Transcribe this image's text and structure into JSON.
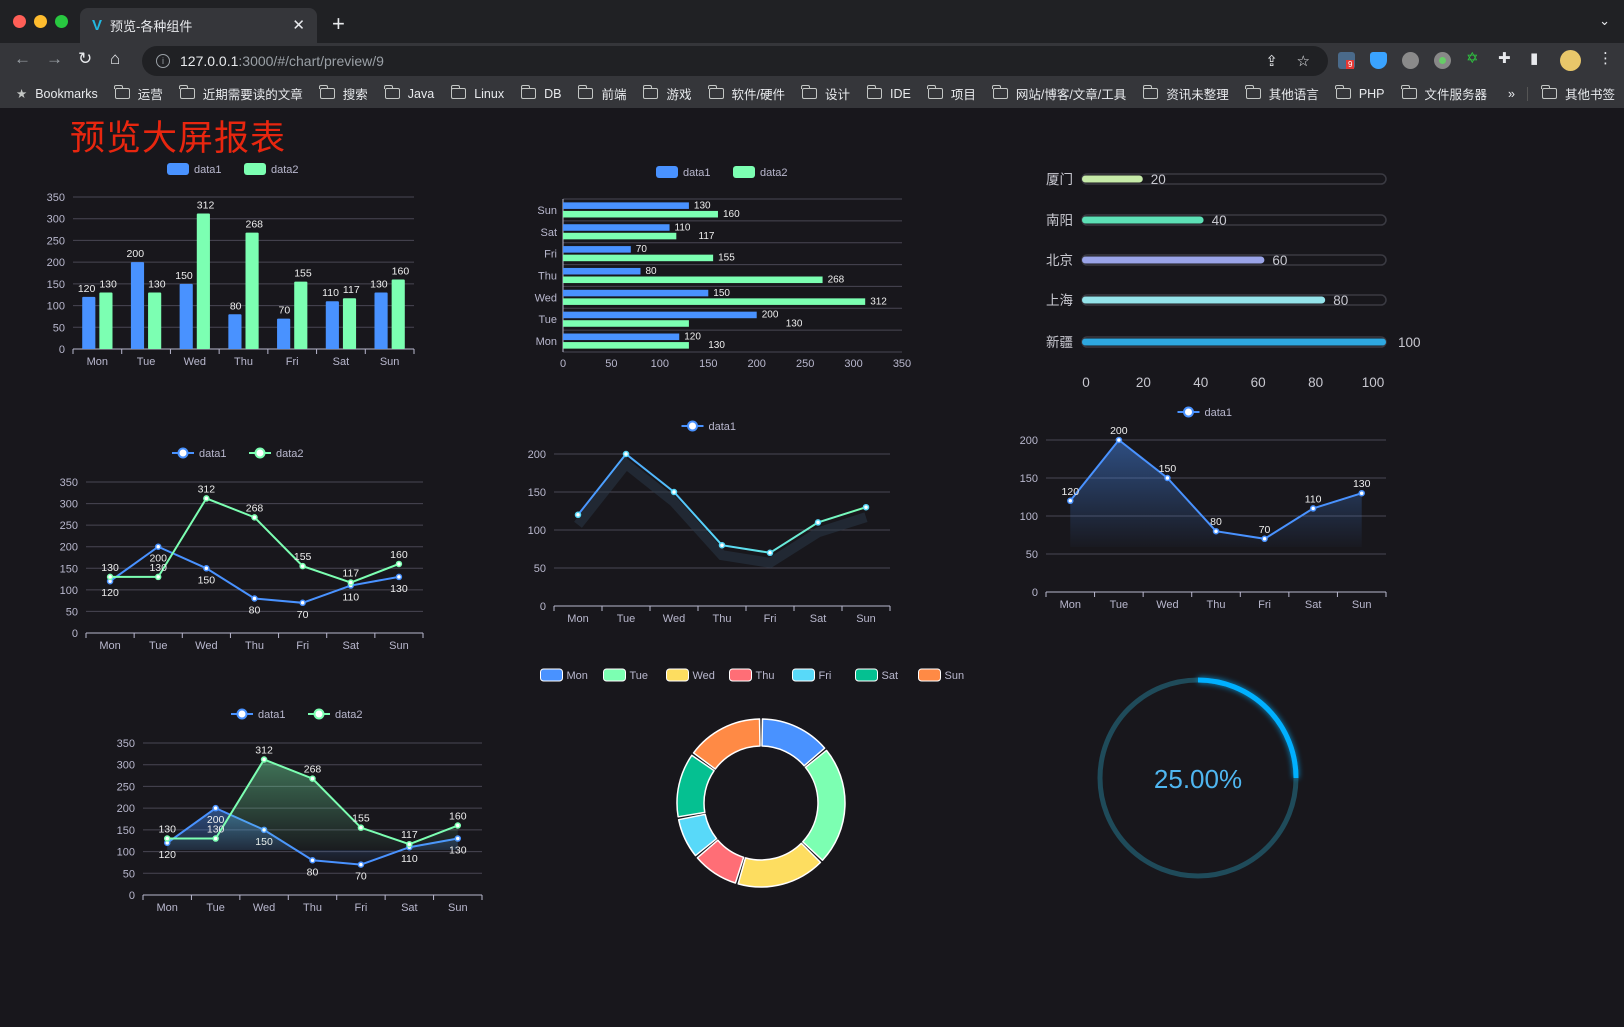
{
  "browser": {
    "tab_title": "预览-各种组件",
    "url_host": "127.0.0.1",
    "url_rest": ":3000/#/chart/preview/9",
    "extension_badge": "9",
    "bookmarks": [
      "Bookmarks",
      "运营",
      "近期需要读的文章",
      "搜索",
      "Java",
      "Linux",
      "DB",
      "前端",
      "游戏",
      "软件/硬件",
      "设计",
      "IDE",
      "项目",
      "网站/博客/文章/工具",
      "资讯未整理",
      "其他语言",
      "PHP",
      "文件服务器"
    ],
    "more": "»",
    "other_bookmarks": "其他书签"
  },
  "page_title": "预览大屏报表",
  "colors": {
    "data1": "#4992ff",
    "data2": "#7cffb2",
    "title": "#e8260f",
    "gauge": "#00b0ff"
  },
  "chart_data": [
    {
      "type": "bar",
      "categories": [
        "Mon",
        "Tue",
        "Wed",
        "Thu",
        "Fri",
        "Sat",
        "Sun"
      ],
      "series": [
        {
          "name": "data1",
          "values": [
            120,
            200,
            150,
            80,
            70,
            110,
            130
          ]
        },
        {
          "name": "data2",
          "values": [
            130,
            130,
            312,
            268,
            155,
            117,
            160
          ]
        }
      ],
      "ylim": [
        0,
        350
      ],
      "yticks": [
        0,
        50,
        100,
        150,
        200,
        250,
        300,
        350
      ],
      "legend": "top",
      "grid": true
    },
    {
      "type": "bar",
      "orientation": "horizontal",
      "categories": [
        "Mon",
        "Tue",
        "Wed",
        "Thu",
        "Fri",
        "Sat",
        "Sun"
      ],
      "series": [
        {
          "name": "data1",
          "values": [
            120,
            200,
            150,
            80,
            70,
            110,
            130
          ]
        },
        {
          "name": "data2",
          "values": [
            130,
            130,
            312,
            268,
            155,
            117,
            160
          ]
        }
      ],
      "xlim": [
        0,
        350
      ],
      "xticks": [
        0,
        50,
        100,
        150,
        200,
        250,
        300,
        350
      ],
      "legend": "top",
      "grid": true
    },
    {
      "type": "bar",
      "orientation": "horizontal",
      "subtype": "progress",
      "categories": [
        "厦门",
        "南阳",
        "北京",
        "上海",
        "新疆"
      ],
      "values": [
        20,
        40,
        60,
        80,
        100
      ],
      "xlim": [
        0,
        100
      ],
      "xticks": [
        0,
        20,
        40,
        60,
        80,
        100
      ],
      "colors": [
        "#c6eaa8",
        "#5de0b6",
        "#9aa4e8",
        "#94e3ea",
        "#2ea8e0"
      ]
    },
    {
      "type": "line",
      "categories": [
        "Mon",
        "Tue",
        "Wed",
        "Thu",
        "Fri",
        "Sat",
        "Sun"
      ],
      "series": [
        {
          "name": "data1",
          "values": [
            120,
            200,
            150,
            80,
            70,
            110,
            130
          ]
        },
        {
          "name": "data2",
          "values": [
            130,
            130,
            312,
            268,
            155,
            117,
            160
          ]
        }
      ],
      "ylim": [
        0,
        350
      ],
      "yticks": [
        0,
        50,
        100,
        150,
        200,
        250,
        300,
        350
      ],
      "legend": "top",
      "grid": true
    },
    {
      "type": "line",
      "categories": [
        "Mon",
        "Tue",
        "Wed",
        "Thu",
        "Fri",
        "Sat",
        "Sun"
      ],
      "series": [
        {
          "name": "data1",
          "values": [
            120,
            200,
            150,
            80,
            70,
            110,
            130
          ]
        }
      ],
      "ylim": [
        0,
        200
      ],
      "yticks": [
        0,
        50,
        100,
        150,
        200
      ],
      "legend": "top",
      "grid": true,
      "labels": false
    },
    {
      "type": "area",
      "categories": [
        "Mon",
        "Tue",
        "Wed",
        "Thu",
        "Fri",
        "Sat",
        "Sun"
      ],
      "series": [
        {
          "name": "data1",
          "values": [
            120,
            200,
            150,
            80,
            70,
            110,
            130
          ]
        }
      ],
      "ylim": [
        0,
        200
      ],
      "yticks": [
        0,
        50,
        100,
        150,
        200
      ],
      "legend": "top",
      "grid": true
    },
    {
      "type": "area",
      "categories": [
        "Mon",
        "Tue",
        "Wed",
        "Thu",
        "Fri",
        "Sat",
        "Sun"
      ],
      "series": [
        {
          "name": "data1",
          "values": [
            120,
            200,
            150,
            80,
            70,
            110,
            130
          ]
        },
        {
          "name": "data2",
          "values": [
            130,
            130,
            312,
            268,
            155,
            117,
            160
          ]
        }
      ],
      "ylim": [
        0,
        350
      ],
      "yticks": [
        0,
        50,
        100,
        150,
        200,
        250,
        300,
        350
      ],
      "legend": "top",
      "grid": true
    },
    {
      "type": "pie",
      "subtype": "donut",
      "categories": [
        "Mon",
        "Tue",
        "Wed",
        "Thu",
        "Fri",
        "Sat",
        "Sun"
      ],
      "values": [
        120,
        200,
        150,
        80,
        70,
        110,
        130
      ],
      "colors": [
        "#4992ff",
        "#7cffb2",
        "#fddd60",
        "#ff6e76",
        "#58d9f9",
        "#05c091",
        "#ff8a45"
      ],
      "legend": "top"
    },
    {
      "type": "gauge",
      "value": 25,
      "label": "25.00%"
    }
  ]
}
